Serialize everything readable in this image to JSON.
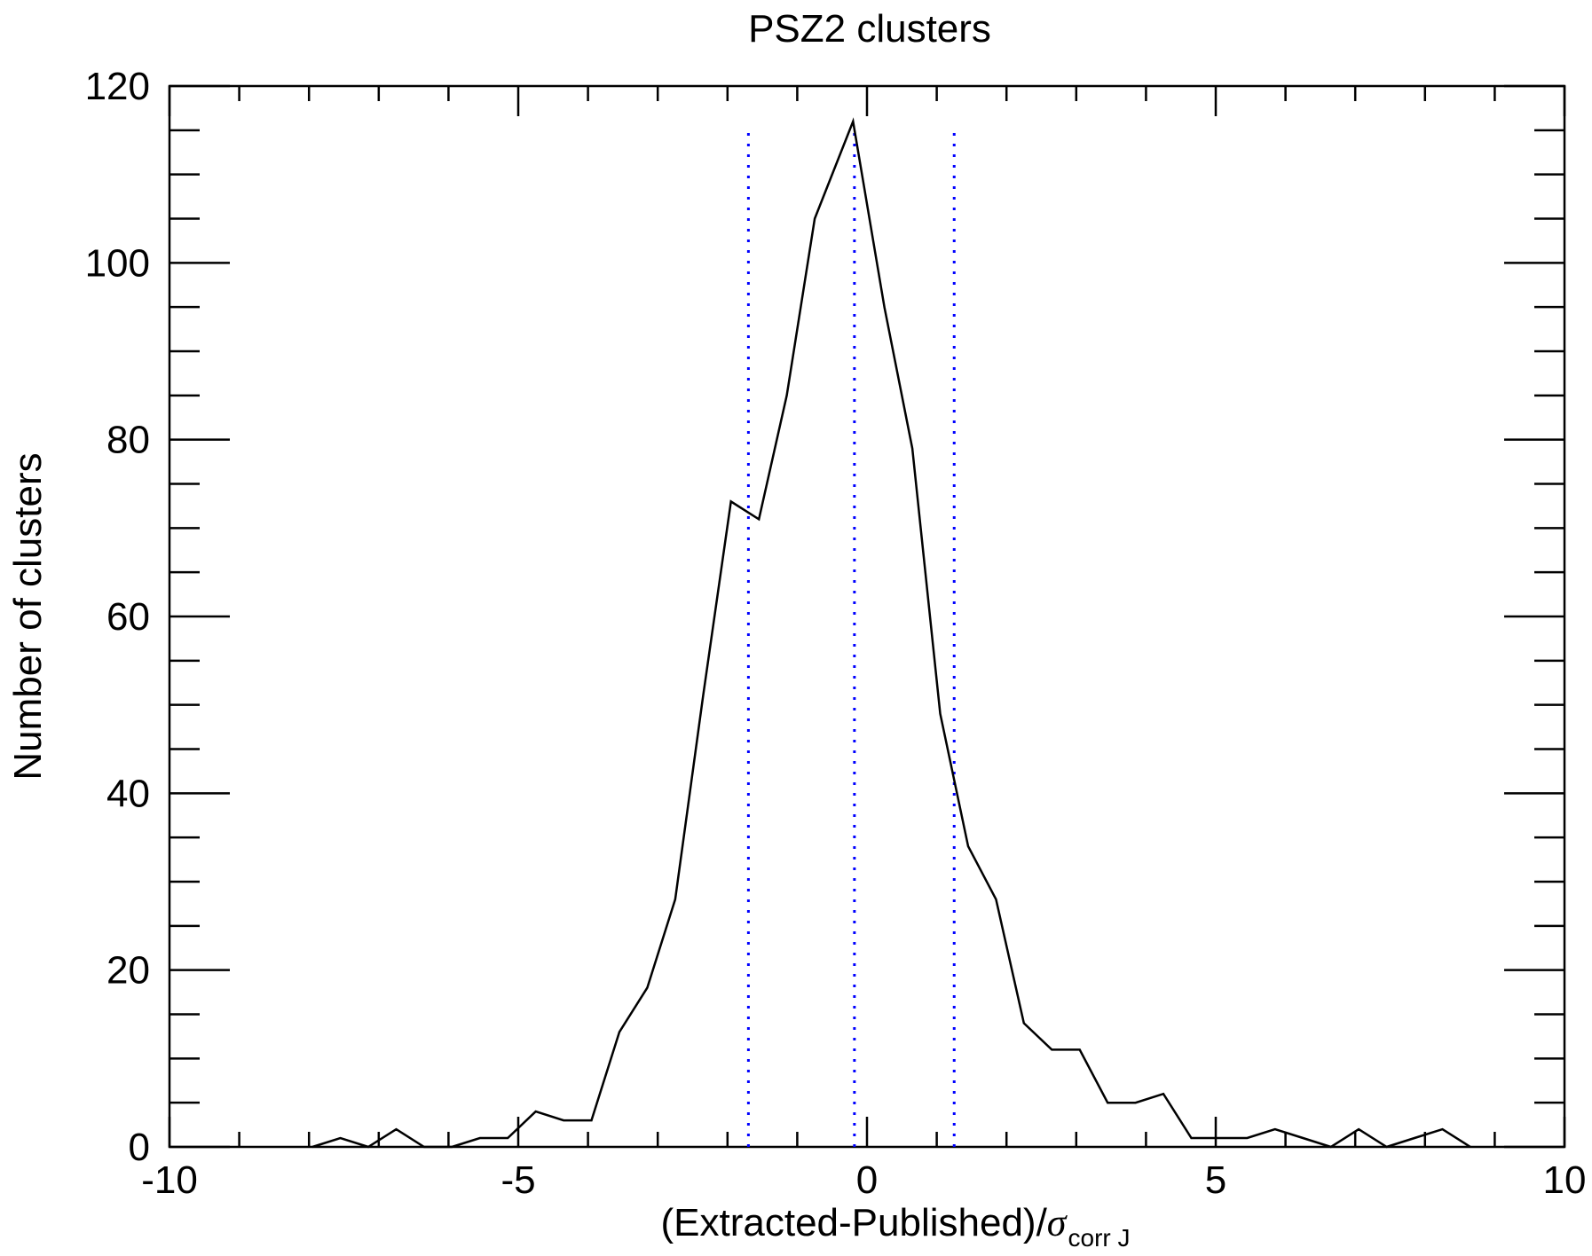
{
  "chart_data": {
    "type": "line",
    "title": "PSZ2 clusters",
    "xlabel": "(Extracted-Published)/",
    "xlabel_symbol": "σ",
    "xlabel_subscript": "corr J",
    "ylabel": "Number of clusters",
    "xlim": [
      -10,
      10
    ],
    "ylim": [
      0,
      120
    ],
    "xticks": [
      -10,
      -5,
      0,
      5,
      10
    ],
    "yticks": [
      0,
      20,
      40,
      60,
      80,
      100,
      120
    ],
    "xtick_labels": [
      "-10",
      "-5",
      "0",
      "5",
      "10"
    ],
    "ytick_labels": [
      "0",
      "20",
      "40",
      "60",
      "80",
      "100",
      "120"
    ],
    "x_minor_step": 1,
    "y_minor_step": 5,
    "grid": false,
    "series": [
      {
        "color": "#000000",
        "x": [
          -7.95,
          -7.55,
          -7.15,
          -6.75,
          -6.35,
          -5.95,
          -5.55,
          -5.15,
          -4.75,
          -4.35,
          -3.95,
          -3.55,
          -3.15,
          -2.75,
          -2.35,
          -1.95,
          -1.55,
          -1.15,
          -0.75,
          -0.2,
          0.25,
          0.65,
          1.05,
          1.45,
          1.85,
          2.25,
          2.65,
          3.05,
          3.45,
          3.85,
          4.25,
          4.65,
          5.05,
          5.45,
          5.85,
          6.25,
          6.65,
          7.05,
          7.45,
          7.85,
          8.25,
          8.65
        ],
        "y": [
          0,
          1,
          0,
          2,
          0,
          0,
          1,
          1,
          4,
          3,
          3,
          13,
          18,
          28,
          51,
          73,
          71,
          85,
          105,
          116,
          95,
          79,
          49,
          34,
          28,
          14,
          11,
          11,
          5,
          5,
          6,
          1,
          1,
          1,
          2,
          1,
          0,
          2,
          0,
          1,
          2,
          0
        ]
      }
    ],
    "reference_lines": [
      {
        "x": -1.7,
        "y_top": 115,
        "color": "#0000ff",
        "style": "dotted"
      },
      {
        "x": -0.18,
        "y_top": 115,
        "color": "#0000ff",
        "style": "dotted"
      },
      {
        "x": 1.25,
        "y_top": 115,
        "color": "#0000ff",
        "style": "dotted"
      }
    ]
  }
}
